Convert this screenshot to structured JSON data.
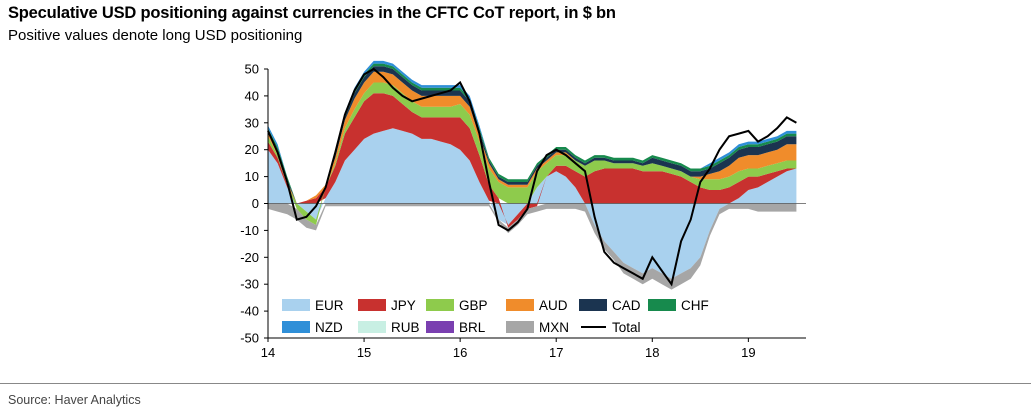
{
  "header": {
    "title": "Speculative USD positioning against currencies in the CFTC CoT report, in $ bn",
    "subtitle": "Positive values denote long USD positioning"
  },
  "footer": {
    "source": "Source: Haver Analytics"
  },
  "chart_data": {
    "type": "area",
    "stacked": true,
    "title": "Speculative USD positioning against currencies in the CFTC CoT report, in $ bn",
    "subtitle": "Positive values denote long USD positioning",
    "xlabel": "",
    "ylabel": "",
    "xlim": [
      2014,
      2019.6
    ],
    "ylim": [
      -50,
      50
    ],
    "yticks": [
      -50,
      -40,
      -30,
      -20,
      -10,
      0,
      10,
      20,
      30,
      40,
      50
    ],
    "xtick_labels": [
      "14",
      "15",
      "16",
      "17",
      "18",
      "19"
    ],
    "x": [
      2014.0,
      2014.1,
      2014.2,
      2014.3,
      2014.4,
      2014.5,
      2014.6,
      2014.7,
      2014.8,
      2014.9,
      2015.0,
      2015.1,
      2015.2,
      2015.3,
      2015.4,
      2015.5,
      2015.6,
      2015.7,
      2015.8,
      2015.9,
      2016.0,
      2016.1,
      2016.2,
      2016.3,
      2016.4,
      2016.5,
      2016.6,
      2016.7,
      2016.8,
      2016.9,
      2017.0,
      2017.1,
      2017.2,
      2017.3,
      2017.4,
      2017.5,
      2017.6,
      2017.7,
      2017.8,
      2017.9,
      2018.0,
      2018.1,
      2018.2,
      2018.3,
      2018.4,
      2018.5,
      2018.6,
      2018.7,
      2018.8,
      2018.9,
      2019.0,
      2019.1,
      2019.2,
      2019.3,
      2019.4,
      2019.5
    ],
    "series": [
      {
        "name": "EUR",
        "color": "#a9d1ee",
        "values": [
          20,
          15,
          6,
          0,
          -3,
          -6,
          2,
          8,
          16,
          20,
          24,
          26,
          27,
          28,
          27,
          26,
          24,
          24,
          23,
          22,
          20,
          16,
          8,
          1,
          -6,
          -8,
          -4,
          0,
          6,
          10,
          12,
          10,
          6,
          0,
          -8,
          -14,
          -18,
          -22,
          -24,
          -26,
          -24,
          -26,
          -28,
          -26,
          -24,
          -20,
          -10,
          -2,
          0,
          2,
          5,
          6,
          8,
          10,
          12,
          13
        ]
      },
      {
        "name": "JPY",
        "color": "#c8312f",
        "values": [
          3,
          2,
          1,
          0,
          1,
          2,
          4,
          6,
          10,
          12,
          14,
          15,
          14,
          12,
          10,
          8,
          8,
          8,
          9,
          10,
          12,
          12,
          10,
          6,
          2,
          -1,
          -2,
          -2,
          -1,
          0,
          2,
          4,
          6,
          10,
          12,
          13,
          13,
          13,
          13,
          12,
          12,
          12,
          11,
          10,
          8,
          6,
          5,
          5,
          6,
          6,
          5,
          4,
          3,
          2,
          1,
          0
        ]
      },
      {
        "name": "GBP",
        "color": "#8ecb4c",
        "values": [
          2,
          1,
          0,
          -2,
          -3,
          -2,
          0,
          1,
          2,
          3,
          3,
          4,
          4,
          4,
          4,
          4,
          4,
          4,
          4,
          4,
          5,
          5,
          5,
          6,
          6,
          6,
          6,
          6,
          6,
          5,
          4,
          4,
          4,
          4,
          4,
          3,
          2,
          2,
          2,
          2,
          3,
          2,
          2,
          2,
          2,
          3,
          4,
          4,
          4,
          4,
          3,
          3,
          3,
          3,
          3,
          3
        ]
      },
      {
        "name": "AUD",
        "color": "#f08c2b",
        "values": [
          1,
          1,
          1,
          0,
          0,
          1,
          1,
          2,
          3,
          4,
          4,
          4,
          4,
          4,
          4,
          4,
          4,
          4,
          4,
          4,
          3,
          3,
          2,
          2,
          1,
          1,
          1,
          1,
          1,
          1,
          1,
          1,
          0,
          0,
          0,
          0,
          0,
          0,
          0,
          0,
          0,
          0,
          0,
          0,
          0,
          1,
          2,
          3,
          4,
          5,
          5,
          5,
          5,
          5,
          6,
          6
        ]
      },
      {
        "name": "CAD",
        "color": "#1b3450",
        "values": [
          1,
          1,
          1,
          0,
          0,
          0,
          0,
          1,
          1,
          2,
          2,
          2,
          2,
          2,
          2,
          2,
          2,
          2,
          2,
          2,
          2,
          2,
          2,
          1,
          1,
          1,
          1,
          1,
          1,
          1,
          1,
          1,
          1,
          1,
          1,
          1,
          1,
          1,
          1,
          1,
          2,
          2,
          2,
          2,
          2,
          2,
          2,
          3,
          3,
          3,
          3,
          3,
          3,
          3,
          3,
          3
        ]
      },
      {
        "name": "CHF",
        "color": "#178a4d",
        "values": [
          1,
          1,
          1,
          0,
          0,
          0,
          0,
          1,
          1,
          1,
          1,
          1,
          1,
          1,
          1,
          1,
          1,
          1,
          1,
          1,
          1,
          1,
          1,
          1,
          1,
          1,
          1,
          1,
          1,
          1,
          1,
          1,
          1,
          1,
          1,
          1,
          1,
          1,
          1,
          1,
          1,
          1,
          1,
          1,
          1,
          1,
          1,
          1,
          1,
          1,
          1,
          1,
          1,
          1,
          1,
          1
        ]
      },
      {
        "name": "NZD",
        "color": "#2f8fd8",
        "values": [
          1,
          1,
          0,
          0,
          0,
          0,
          0,
          1,
          1,
          1,
          1,
          1,
          1,
          1,
          1,
          1,
          1,
          1,
          1,
          1,
          1,
          1,
          1,
          0,
          0,
          0,
          0,
          0,
          0,
          0,
          0,
          0,
          0,
          0,
          0,
          0,
          0,
          0,
          0,
          0,
          0,
          0,
          0,
          0,
          0,
          0,
          1,
          1,
          1,
          1,
          1,
          1,
          1,
          1,
          1,
          1
        ]
      },
      {
        "name": "RUB",
        "color": "#c8efe3",
        "values": [
          0,
          0,
          0,
          0,
          0,
          0,
          0,
          0,
          0,
          0,
          0,
          0,
          0,
          0,
          0,
          0,
          0,
          0,
          0,
          0,
          0,
          0,
          0,
          0,
          0,
          0,
          0,
          0,
          0,
          0,
          0,
          0,
          0,
          0,
          0,
          0,
          0,
          0,
          0,
          0,
          0,
          0,
          0,
          0,
          0,
          0,
          0,
          0,
          0,
          0,
          0,
          0,
          0,
          0,
          0,
          0
        ]
      },
      {
        "name": "BRL",
        "color": "#7a3fb0",
        "values": [
          0,
          0,
          0,
          0,
          0,
          0,
          0,
          0,
          0,
          0,
          0,
          0,
          0,
          0,
          0,
          0,
          0,
          0,
          0,
          0,
          0,
          0,
          0,
          0,
          0,
          0,
          0,
          0,
          0,
          0,
          0,
          0,
          0,
          0,
          0,
          0,
          0,
          0,
          0,
          0,
          0,
          0,
          0,
          0,
          0,
          0,
          0,
          0,
          0,
          0,
          0,
          0,
          0,
          0,
          0,
          0
        ]
      },
      {
        "name": "MXN",
        "color": "#a6a6a6",
        "values": [
          -2,
          -3,
          -4,
          -4,
          -3,
          -2,
          -1,
          -1,
          -1,
          -1,
          -1,
          -1,
          -1,
          -1,
          -1,
          -1,
          -1,
          -1,
          -1,
          -1,
          -1,
          -1,
          -1,
          -1,
          -1,
          -2,
          -2,
          -2,
          -2,
          -2,
          -2,
          -2,
          -2,
          -3,
          -3,
          -3,
          -3,
          -4,
          -4,
          -4,
          -4,
          -4,
          -4,
          -4,
          -4,
          -3,
          -2,
          -2,
          -2,
          -2,
          -2,
          -3,
          -3,
          -3,
          -3,
          -3
        ]
      }
    ],
    "total": {
      "name": "Total",
      "color": "#000000",
      "values": [
        27,
        19,
        8,
        -6,
        -5,
        -1,
        6,
        19,
        33,
        42,
        48,
        50,
        47,
        43,
        40,
        38,
        39,
        40,
        41,
        42,
        45,
        38,
        26,
        8,
        -8,
        -10,
        -7,
        -2,
        12,
        18,
        20,
        18,
        15,
        12,
        -5,
        -18,
        -22,
        -24,
        -26,
        -28,
        -20,
        -25,
        -30,
        -14,
        -6,
        8,
        13,
        20,
        25,
        26,
        27,
        23,
        25,
        28,
        32,
        30
      ]
    },
    "legend": {
      "position": "bottom-left inside plot",
      "rows": [
        [
          "EUR",
          "JPY",
          "GBP",
          "AUD",
          "CAD",
          "CHF"
        ],
        [
          "NZD",
          "RUB",
          "BRL",
          "MXN",
          "Total"
        ]
      ]
    }
  }
}
